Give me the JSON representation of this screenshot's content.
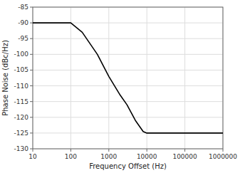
{
  "chart_data": {
    "type": "line",
    "xlabel": "Frequency Offset (Hz)",
    "ylabel": "Phase Noise (dBc/Hz)",
    "x": [
      10,
      100,
      200,
      500,
      1000,
      2000,
      3000,
      5000,
      8000,
      10000,
      100000,
      1000000
    ],
    "values": [
      -90,
      -90,
      -93,
      -100,
      -107,
      -113,
      -116,
      -121,
      -124.5,
      -125,
      -125,
      -125
    ],
    "color": "#000000",
    "log": "x",
    "xlim": [
      10,
      1000000
    ],
    "xticks": [
      10,
      100,
      1000,
      10000,
      100000,
      1000000
    ],
    "ylim": [
      -130,
      -85
    ],
    "yticks": [
      -130,
      -125,
      -120,
      -115,
      -110,
      -105,
      -100,
      -95,
      -90,
      -85
    ],
    "grid": true
  }
}
